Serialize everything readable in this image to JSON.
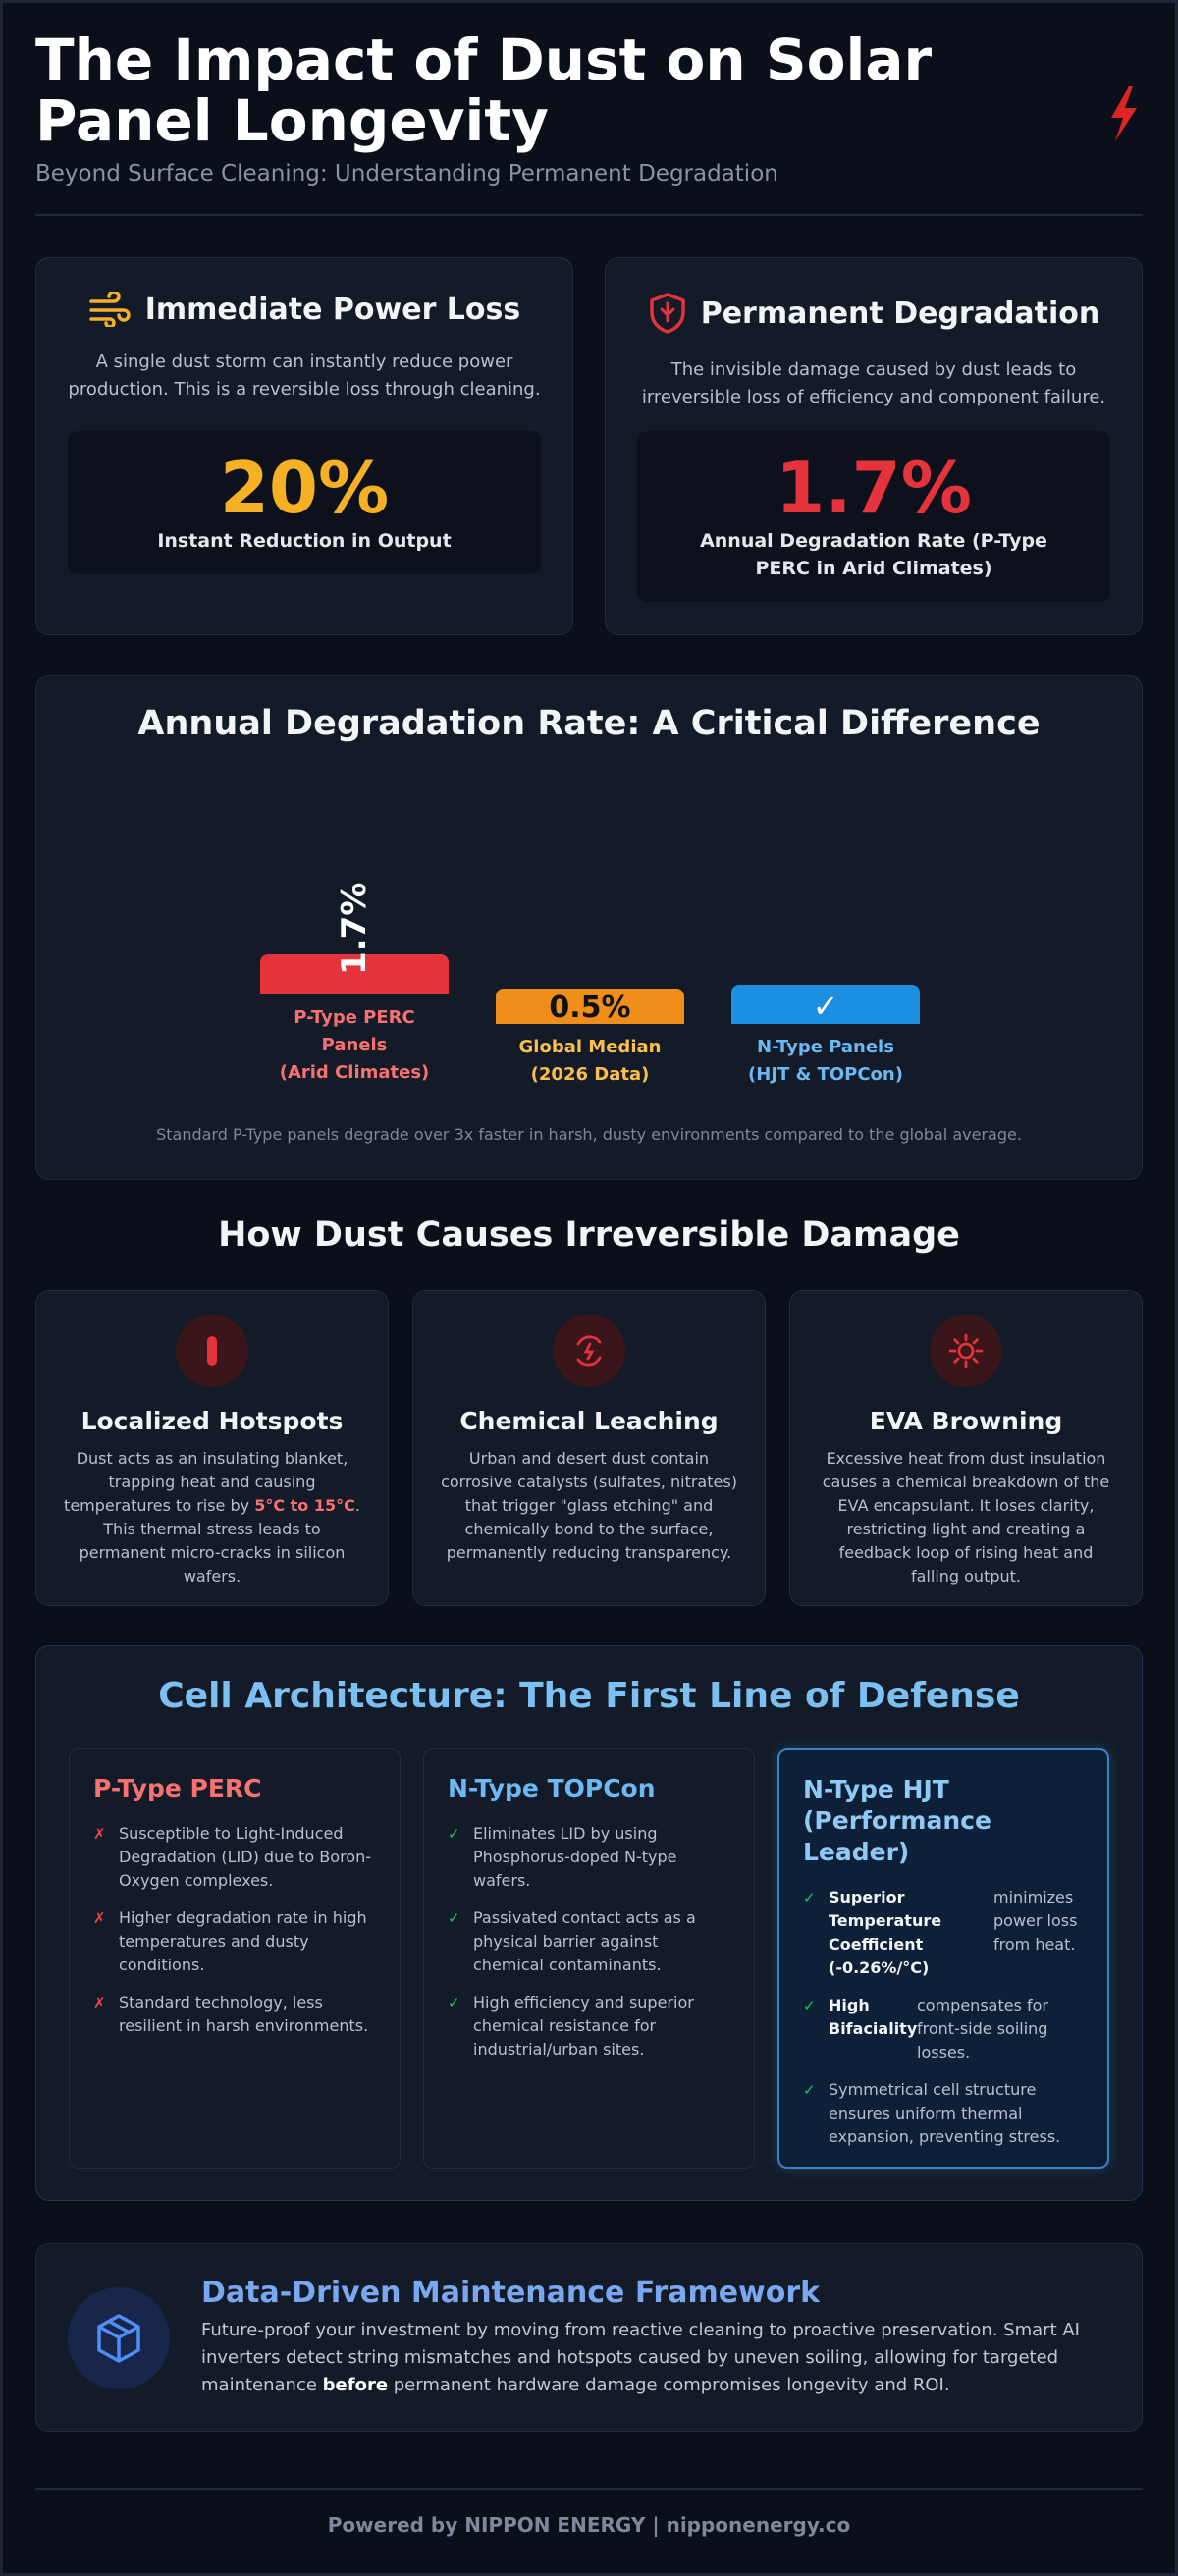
{
  "header": {
    "title": "The Impact of Dust on Solar Panel Longevity",
    "subtitle": "Beyond Surface Cleaning: Understanding Permanent Degradation",
    "icon": "lightning-bolt-icon"
  },
  "stats": {
    "immediate": {
      "title": "Immediate Power Loss",
      "icon": "wind-icon",
      "description": "A single dust storm can instantly reduce power production. This is a reversible loss through cleaning.",
      "value": "20%",
      "label": "Instant Reduction in Output",
      "color": "#f5b026"
    },
    "permanent": {
      "title": "Permanent Degradation",
      "icon": "shield-icon",
      "description": "The invisible damage caused by dust leads to irreversible loss of efficiency and component failure.",
      "value": "1.7%",
      "label": "Annual Degradation Rate (P-Type PERC in Arid Climates)",
      "color": "#e5333b"
    }
  },
  "chart_data": {
    "type": "bar",
    "title": "Annual Degradation Rate: A Critical Difference",
    "categories": [
      "P-Type PERC Panels (Arid Climates)",
      "Global Median (2026 Data)",
      "N-Type Panels (HJT & TOPCon)"
    ],
    "values": [
      1.7,
      0.5,
      null
    ],
    "value_labels": [
      "1.7%",
      "0.5%",
      "✓"
    ],
    "colors": [
      "#e5333b",
      "#ef8f1a",
      "#1c8fe0"
    ],
    "label_colors": [
      "#f87171",
      "#fbbf4a",
      "#6cb8f2"
    ],
    "label_lines": [
      [
        "P-Type PERC",
        "Panels",
        "(Arid Climates)"
      ],
      [
        "Global Median",
        "(2026 Data)"
      ],
      [
        "N-Type Panels",
        "(HJT & TOPCon)"
      ]
    ],
    "note": "Standard P-Type panels degrade over 3x faster in harsh, dusty environments compared to the global average.",
    "grid": false,
    "legend": "none"
  },
  "mechanisms": {
    "title": "How Dust Causes Irreversible Damage",
    "items": [
      {
        "title": "Localized Hotspots",
        "icon": "thermometer-icon",
        "text_before": "Dust acts as an insulating blanket, trapping heat and causing temperatures to rise by ",
        "highlight": "5°C to 15°C",
        "text_after": ". This thermal stress leads to permanent micro-cracks in silicon wafers."
      },
      {
        "title": "Chemical Leaching",
        "icon": "chemical-cycle-icon",
        "text": "Urban and desert dust contain corrosive catalysts (sulfates, nitrates) that trigger \"glass etching\" and chemically bond to the surface, permanently reducing transparency."
      },
      {
        "title": "EVA Browning",
        "icon": "sun-icon",
        "text": "Excessive heat from dust insulation causes a chemical breakdown of the EVA encapsulant. It loses clarity, restricting light and creating a feedback loop of rising heat and falling output."
      }
    ]
  },
  "architecture": {
    "title": "Cell Architecture: The First Line of Defense",
    "perc": {
      "title": "P-Type PERC",
      "items": [
        "Susceptible to Light-Induced Degradation (LID) due to Boron-Oxygen complexes.",
        "Higher degradation rate in high temperatures and dusty conditions.",
        "Standard technology, less resilient in harsh environments."
      ]
    },
    "topcon": {
      "title": "N-Type TOPCon",
      "items": [
        "Eliminates LID by using Phosphorus-doped N-type wafers.",
        "Passivated contact acts as a physical barrier against chemical contaminants.",
        "High efficiency and superior chemical resistance for industrial/urban sites."
      ]
    },
    "hjt": {
      "title": "N-Type HJT (Performance Leader)",
      "item1_bold": "Superior Temperature Coefficient (-0.26%/°C)",
      "item1_text": "minimizes power loss from heat.",
      "item2_bold": "High Bifaciality",
      "item2_text": "compensates for front-side soiling losses.",
      "item3": "Symmetrical cell structure ensures uniform thermal expansion, preventing stress."
    },
    "cross_mark": "✗",
    "check_mark": "✓"
  },
  "maintenance": {
    "title": "Data-Driven Maintenance Framework",
    "icon": "cube-icon",
    "text_before": "Future-proof your investment by moving from reactive cleaning to proactive preservation. Smart AI inverters detect string mismatches and hotspots caused by uneven soiling, allowing for targeted maintenance ",
    "bold": "before",
    "text_after": " permanent hardware damage compromises longevity and ROI."
  },
  "footer": "Powered by NIPPON ENERGY | nipponenergy.co"
}
